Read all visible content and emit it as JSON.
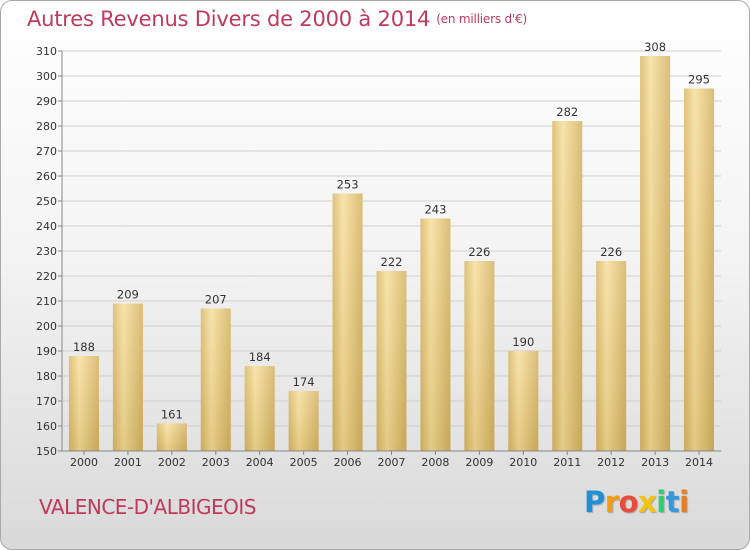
{
  "chart_data": {
    "type": "bar",
    "title": "Autres Revenus Divers de 2000 à 2014",
    "subtitle": "(en milliers d'€)",
    "categories": [
      "2000",
      "2001",
      "2002",
      "2003",
      "2004",
      "2005",
      "2006",
      "2007",
      "2008",
      "2009",
      "2010",
      "2011",
      "2012",
      "2013",
      "2014"
    ],
    "values": [
      188,
      209,
      161,
      207,
      184,
      174,
      253,
      222,
      243,
      226,
      190,
      282,
      226,
      308,
      295
    ],
    "xlabel": "",
    "ylabel": "",
    "ylim": [
      150,
      310
    ],
    "yticks": [
      150,
      160,
      170,
      180,
      190,
      200,
      210,
      220,
      230,
      240,
      250,
      260,
      270,
      280,
      290,
      300,
      310
    ],
    "grid": true,
    "legend": "none",
    "bar_color": "#e8c87a"
  },
  "footer": {
    "commune": "VALENCE-D'ALBIGEOIS",
    "logo_letters": [
      {
        "char": "P",
        "color": "#1f8fd6"
      },
      {
        "char": "r",
        "color": "#f39c12"
      },
      {
        "char": "o",
        "color": "#e74c3c"
      },
      {
        "char": "x",
        "color": "#f1c40f"
      },
      {
        "char": "i",
        "color": "#2ecc71"
      },
      {
        "char": "t",
        "color": "#3498db"
      },
      {
        "char": "i",
        "color": "#e67e22"
      }
    ]
  }
}
